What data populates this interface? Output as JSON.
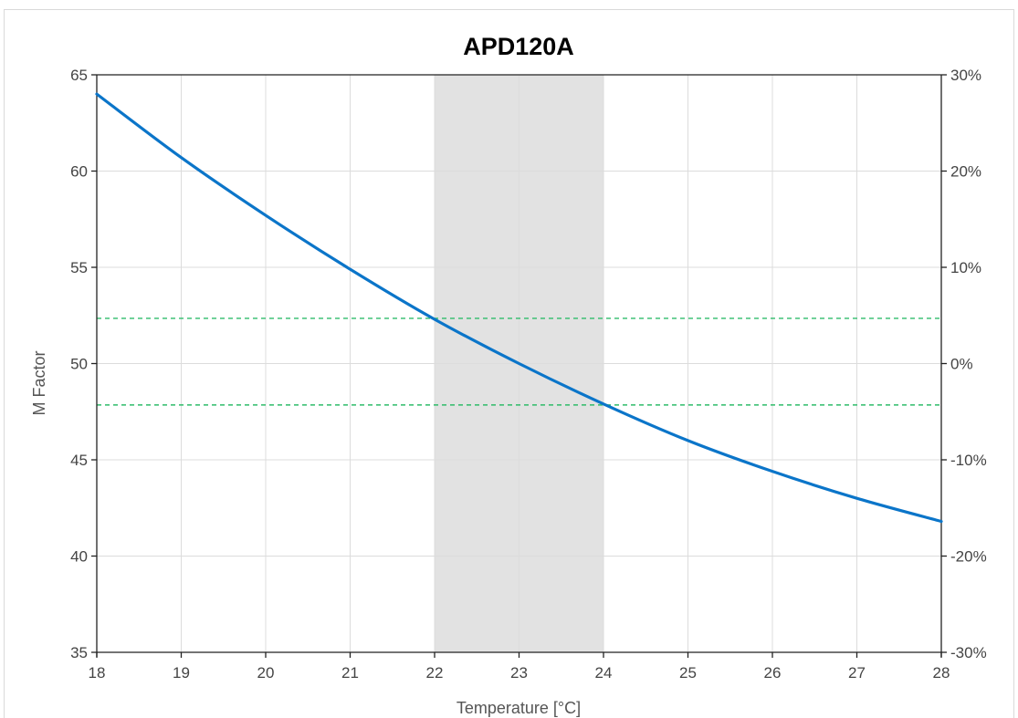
{
  "chart_data": {
    "type": "line",
    "title": "APD120A",
    "xlabel": "Temperature  [°C]",
    "ylabel": "M Factor",
    "xlim": [
      18,
      28
    ],
    "ylim": [
      35,
      65
    ],
    "y2lim": [
      -30,
      30
    ],
    "x_ticks": [
      18,
      19,
      20,
      21,
      22,
      23,
      24,
      25,
      26,
      27,
      28
    ],
    "y_ticks": [
      35,
      40,
      45,
      50,
      55,
      60,
      65
    ],
    "y2_ticks": [
      "-30%",
      "-20%",
      "-10%",
      "0%",
      "10%",
      "20%",
      "30%"
    ],
    "grid": true,
    "series": [
      {
        "x": [
          18,
          19,
          20,
          21,
          22,
          23,
          24,
          25,
          26,
          27,
          28
        ],
        "values": [
          64.0,
          60.7,
          57.7,
          54.9,
          52.3,
          50.0,
          47.9,
          46.0,
          44.4,
          43.0,
          41.8
        ],
        "color": "#0b75c9"
      }
    ],
    "shaded_band": {
      "x_range": [
        22,
        24
      ],
      "color": "#e2e2e2"
    },
    "reference_lines": [
      {
        "y": 52.35,
        "color": "#2ebc6a",
        "style": "dashed"
      },
      {
        "y": 47.85,
        "color": "#2ebc6a",
        "style": "dashed"
      }
    ],
    "colors": {
      "grid": "#dcdcdc",
      "axis": "#222222"
    }
  }
}
